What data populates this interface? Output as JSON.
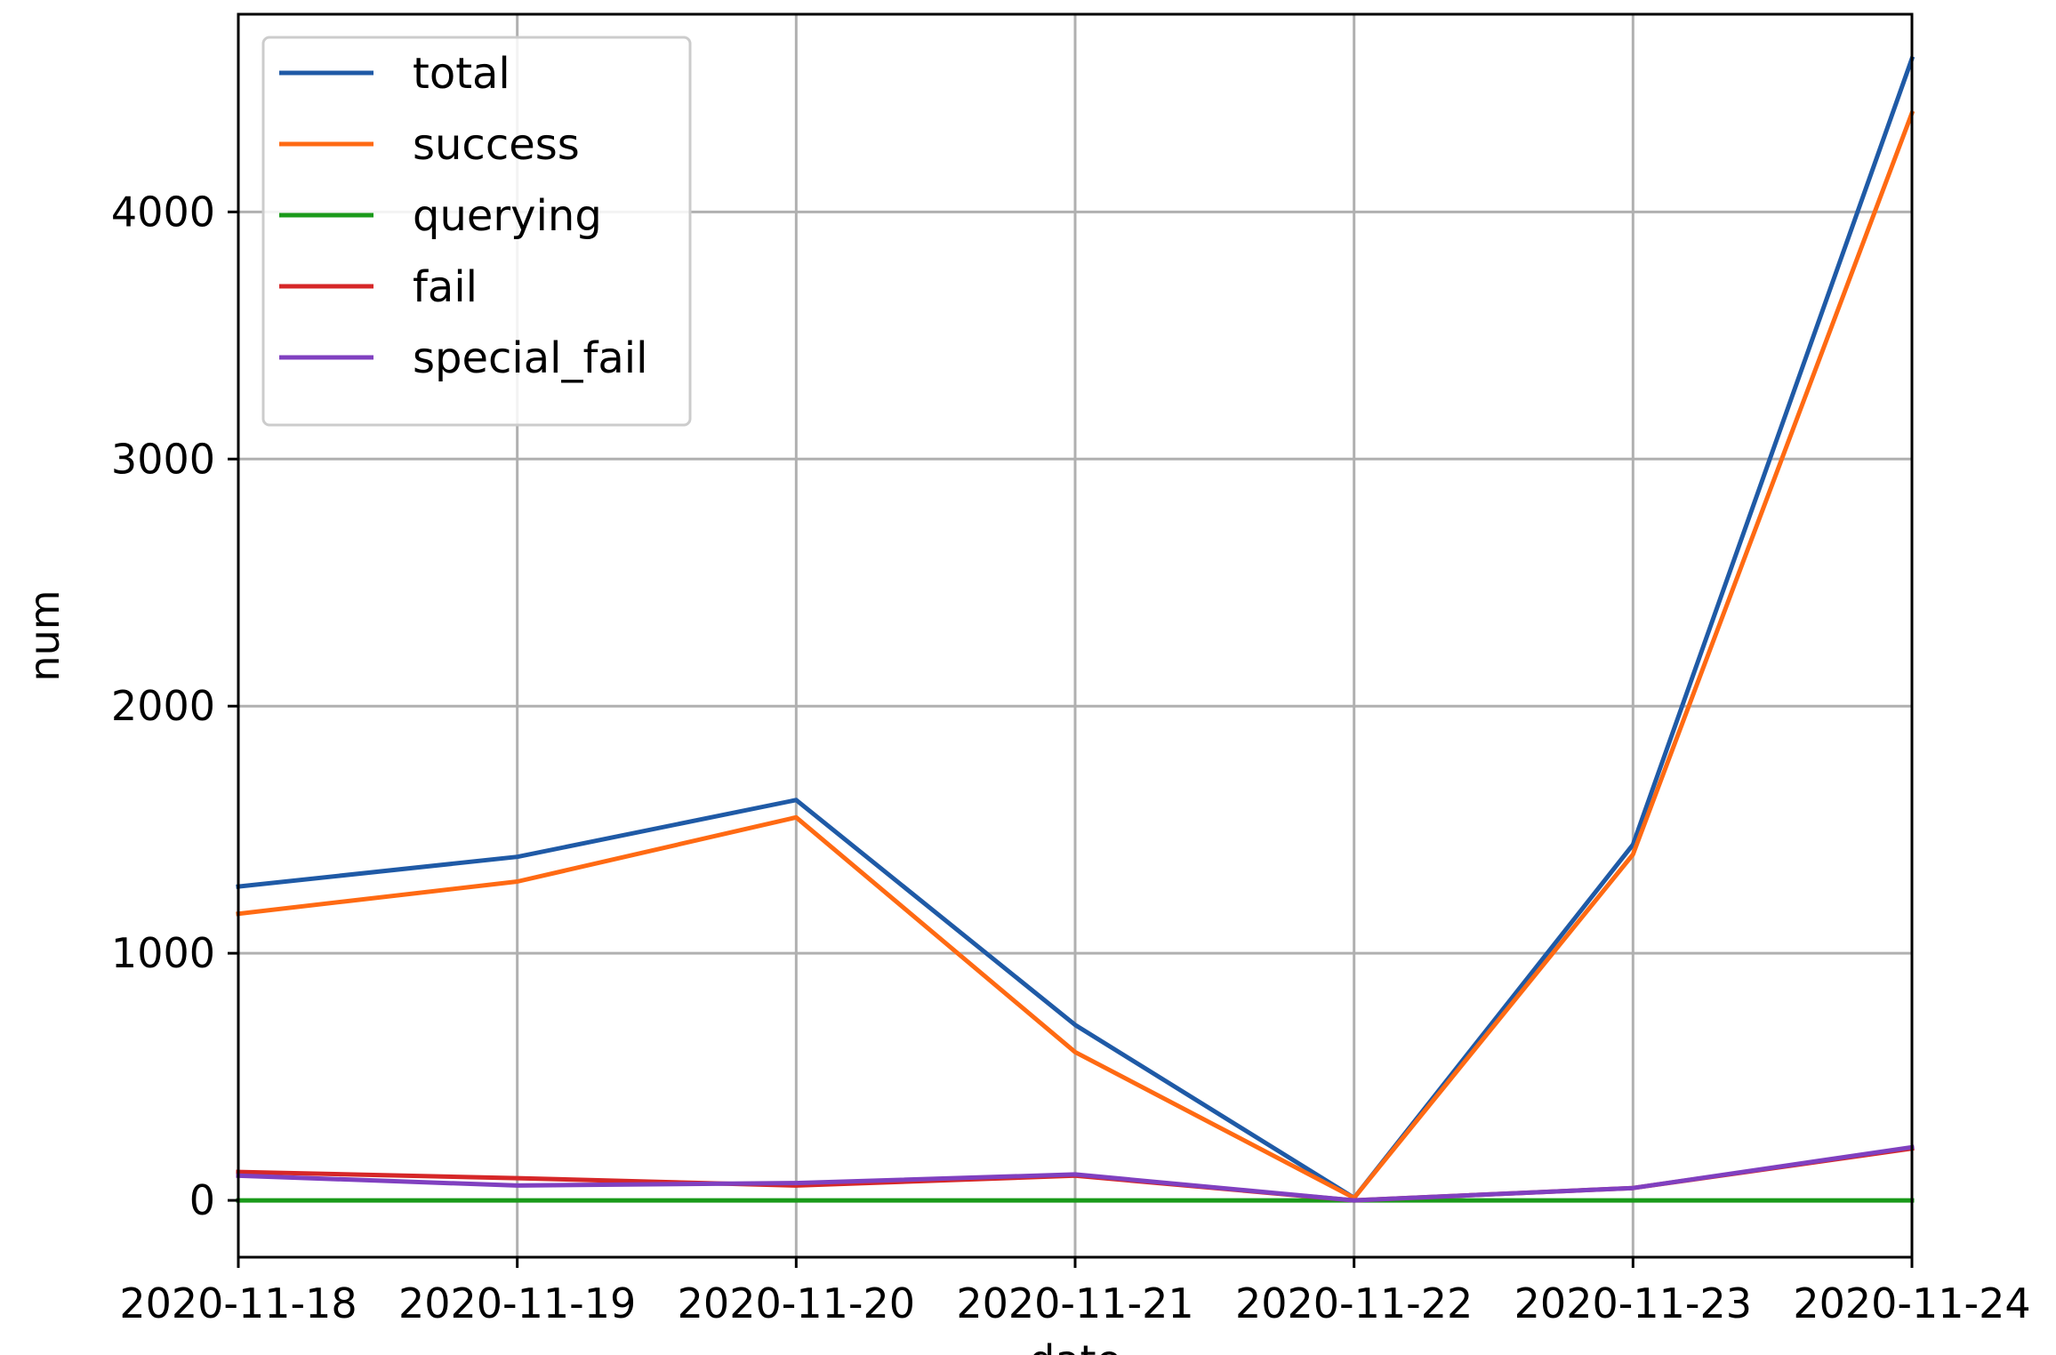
{
  "chart_data": {
    "type": "line",
    "title": "",
    "xlabel": "date",
    "ylabel": "num",
    "x": [
      "2020-11-18",
      "2020-11-19",
      "2020-11-20",
      "2020-11-21",
      "2020-11-22",
      "2020-11-23",
      "2020-11-24"
    ],
    "xlim": [
      "2020-11-18",
      "2020-11-24"
    ],
    "ylim": [
      -230,
      4800
    ],
    "yticks": [
      0,
      1000,
      2000,
      3000,
      4000
    ],
    "grid": true,
    "legend_position": "upper-left",
    "series": [
      {
        "name": "total",
        "color": "#1f5aa6",
        "values": [
          1270,
          1390,
          1620,
          710,
          10,
          1440,
          4620
        ]
      },
      {
        "name": "success",
        "color": "#ff6a13",
        "values": [
          1160,
          1290,
          1550,
          600,
          10,
          1400,
          4400
        ]
      },
      {
        "name": "querying",
        "color": "#1a9a1a",
        "values": [
          0,
          0,
          0,
          0,
          0,
          0,
          0
        ]
      },
      {
        "name": "fail",
        "color": "#d62728",
        "values": [
          115,
          90,
          60,
          100,
          0,
          50,
          210
        ]
      },
      {
        "name": "special_fail",
        "color": "#8040c0",
        "values": [
          100,
          60,
          70,
          105,
          0,
          50,
          215
        ]
      }
    ]
  }
}
